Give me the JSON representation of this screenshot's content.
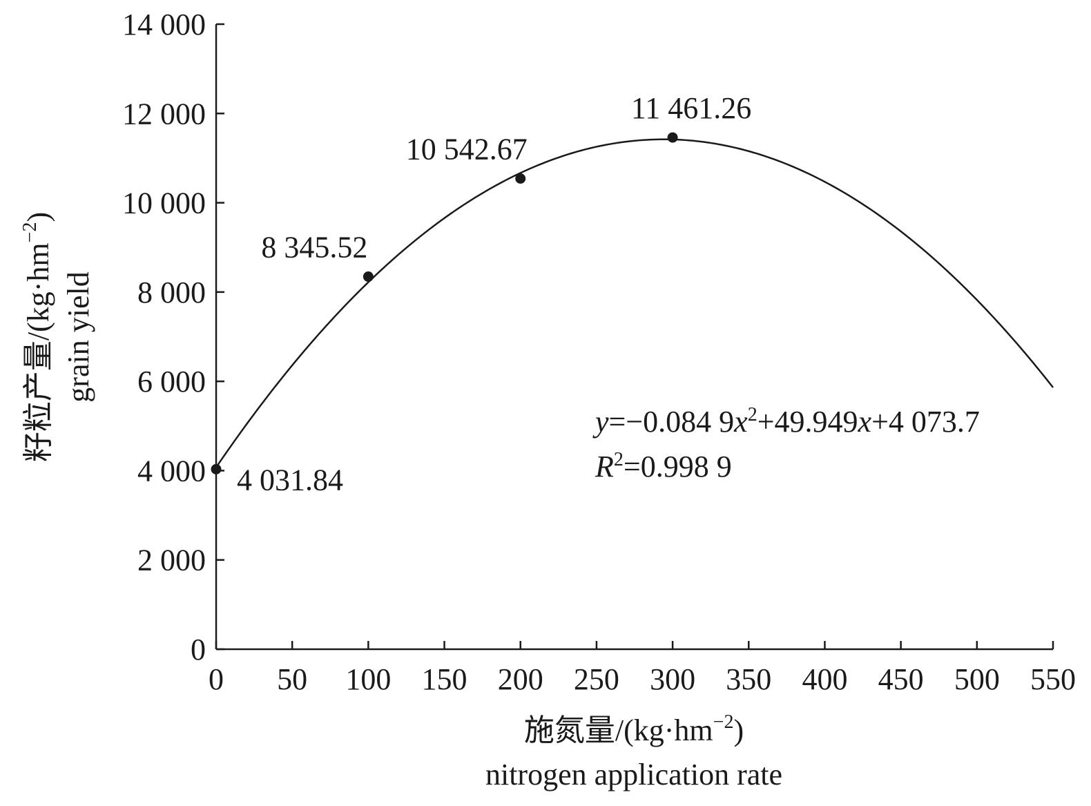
{
  "chart_data": {
    "type": "scatter",
    "x": [
      0,
      100,
      200,
      300
    ],
    "y": [
      4031.84,
      8345.52,
      10542.67,
      11461.26
    ],
    "point_labels": [
      "4 031.84",
      "8 345.52",
      "10 542.67",
      "11 461.26"
    ],
    "xlim": [
      0,
      550
    ],
    "ylim": [
      0,
      14000
    ],
    "x_ticks": [
      0,
      50,
      100,
      150,
      200,
      250,
      300,
      350,
      400,
      450,
      500,
      550
    ],
    "x_tick_labels": [
      "0",
      "50",
      "100",
      "150",
      "200",
      "250",
      "300",
      "350",
      "400",
      "450",
      "500",
      "550"
    ],
    "y_ticks": [
      0,
      2000,
      4000,
      6000,
      8000,
      10000,
      12000,
      14000
    ],
    "y_tick_labels": [
      "0",
      "2 000",
      "4 000",
      "6 000",
      "8 000",
      "10 000",
      "12 000",
      "14 000"
    ],
    "xlabel_cn": "施氮量/(kg·hm",
    "xlabel_exp": "−2",
    "xlabel_close": ")",
    "xlabel_en": "nitrogen application rate",
    "ylabel_cn": "籽粒产量/(kg·hm",
    "ylabel_exp": "−2",
    "ylabel_close": ")",
    "ylabel_en": "grain yield",
    "fit": {
      "type": "quadratic",
      "a": -0.0849,
      "b": 49.949,
      "c": 4073.7,
      "x_range": [
        0,
        550
      ],
      "equation_parts": [
        "y",
        "=−0.084 9",
        "x",
        "2",
        "+49.949",
        "x",
        "+4 073.7"
      ],
      "r2_parts": [
        "R",
        "2",
        "=0.998 9"
      ]
    },
    "grid": false,
    "legend": "none"
  }
}
